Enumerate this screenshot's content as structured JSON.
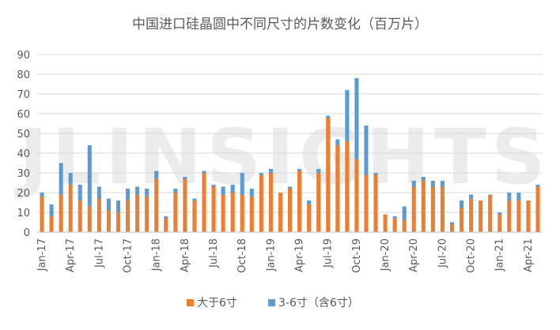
{
  "chart_data": {
    "type": "bar",
    "stacked": true,
    "title": "中国进口硅晶圆中不同尺寸的片数变化（百万片）",
    "watermark": "JLINSIGHTS",
    "ylim": [
      0,
      90
    ],
    "yticks": [
      0,
      10,
      20,
      30,
      40,
      50,
      60,
      70,
      80,
      90
    ],
    "grid": true,
    "legend_position": "bottom",
    "categories": [
      "Jan-17",
      "Feb-17",
      "Mar-17",
      "Apr-17",
      "May-17",
      "Jun-17",
      "Jul-17",
      "Aug-17",
      "Sep-17",
      "Oct-17",
      "Nov-17",
      "Dec-17",
      "Jan-18",
      "Feb-18",
      "Mar-18",
      "Apr-18",
      "May-18",
      "Jun-18",
      "Jul-18",
      "Aug-18",
      "Sep-18",
      "Oct-18",
      "Nov-18",
      "Dec-18",
      "Jan-19",
      "Feb-19",
      "Mar-19",
      "Apr-19",
      "May-19",
      "Jun-19",
      "Jul-19",
      "Aug-19",
      "Sep-19",
      "Oct-19",
      "Nov-19",
      "Dec-19",
      "Jan-20",
      "Feb-20",
      "Mar-20",
      "Apr-20",
      "May-20",
      "Jun-20",
      "Jul-20",
      "Aug-20",
      "Sep-20",
      "Oct-20",
      "Nov-20",
      "Dec-20",
      "Jan-21",
      "Feb-21",
      "Mar-21",
      "Apr-21",
      "May-21"
    ],
    "xtick_labels": [
      "Jan-17",
      "Apr-17",
      "Jul-17",
      "Oct-17",
      "Jan-18",
      "Apr-18",
      "Jul-18",
      "Oct-18",
      "Jan-19",
      "Apr-19",
      "Jul-19",
      "Oct-19",
      "Jan-20",
      "Apr-20",
      "Jul-20",
      "Oct-20",
      "Jan-21",
      "Apr-21"
    ],
    "series": [
      {
        "name": "大于6寸",
        "color": "#ED7D31",
        "values": [
          18,
          8,
          19,
          24,
          16,
          13,
          17,
          11,
          10,
          16,
          19,
          18,
          27,
          7,
          20,
          27,
          16,
          30,
          23,
          19,
          20,
          19,
          18,
          29,
          30,
          20,
          22,
          31,
          14,
          30,
          58,
          44,
          46,
          37,
          29,
          29,
          9,
          7,
          6,
          23,
          26,
          23,
          23,
          4,
          12,
          17,
          16,
          19,
          9,
          16,
          16,
          16,
          23
        ]
      },
      {
        "name": "3-6寸（含6寸）",
        "color": "#5B9BD5",
        "values": [
          2,
          6,
          16,
          6,
          8,
          31,
          6,
          6,
          6,
          6,
          4,
          4,
          4,
          1,
          2,
          1,
          1,
          1,
          1,
          4,
          4,
          11,
          4,
          1,
          2,
          0,
          1,
          1,
          2,
          2,
          1,
          3,
          26,
          41,
          25,
          1,
          0,
          1,
          7,
          3,
          2,
          3,
          3,
          1,
          4,
          2,
          0,
          0,
          1,
          4,
          4,
          0,
          1
        ]
      }
    ]
  }
}
